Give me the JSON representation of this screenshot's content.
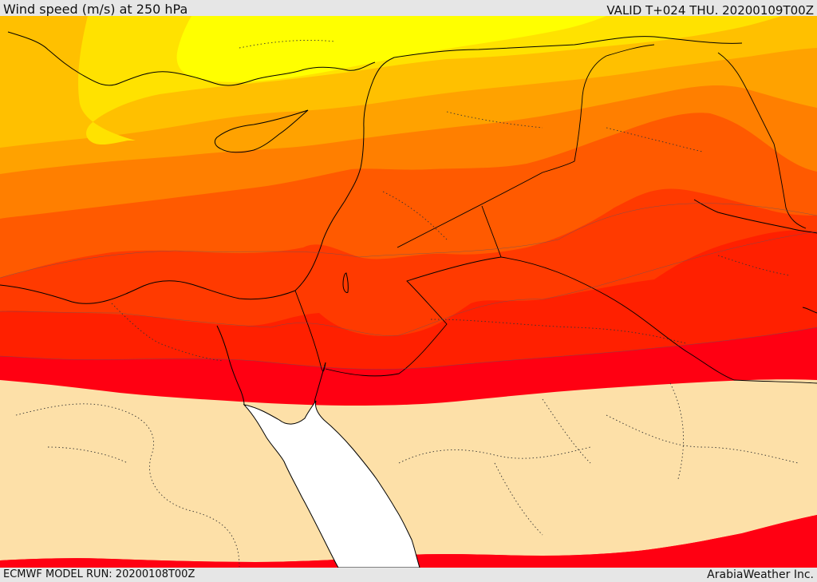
{
  "header": {
    "title": "Wind speed (m/s) at 250 hPa",
    "valid": "VALID T+024 THU. 20200109T00Z"
  },
  "footer": {
    "model_run": "ECMWF MODEL RUN: 20200108T00Z",
    "credit": "ArabiaWeather Inc."
  },
  "colors": {
    "lightest": "#ffff00",
    "yellow": "#ffe200",
    "yellow_orange": "#ffc000",
    "orange_light": "#ffa200",
    "orange": "#ff7f00",
    "orange_red": "#ff5a00",
    "red_orange": "#ff3a00",
    "red": "#ff2000",
    "deep_red": "#ff0012",
    "calm": "#fde0a8",
    "sea": "#ffffff"
  }
}
